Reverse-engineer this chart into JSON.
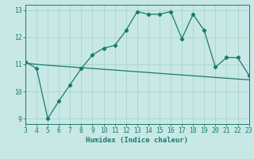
{
  "x": [
    3,
    4,
    5,
    6,
    7,
    8,
    9,
    10,
    11,
    12,
    13,
    14,
    15,
    16,
    17,
    18,
    19,
    20,
    21,
    22,
    23
  ],
  "y_line": [
    11.1,
    10.85,
    9.0,
    9.65,
    10.25,
    10.85,
    11.35,
    11.6,
    11.7,
    12.25,
    12.95,
    12.85,
    12.85,
    12.95,
    11.95,
    12.85,
    12.25,
    10.9,
    11.25,
    11.25,
    10.6
  ],
  "y_trend": [
    11.05,
    11.0,
    10.97,
    10.94,
    10.91,
    10.88,
    10.85,
    10.82,
    10.79,
    10.76,
    10.73,
    10.7,
    10.67,
    10.64,
    10.61,
    10.58,
    10.55,
    10.52,
    10.49,
    10.46,
    10.43
  ],
  "line_color": "#1a7a6e",
  "bg_color": "#c8e8e5",
  "grid_color": "#a8d4d0",
  "xlabel": "Humidex (Indice chaleur)",
  "xlim": [
    3,
    23
  ],
  "ylim": [
    8.8,
    13.2
  ],
  "yticks": [
    9,
    10,
    11,
    12,
    13
  ],
  "xticks": [
    3,
    4,
    5,
    6,
    7,
    8,
    9,
    10,
    11,
    12,
    13,
    14,
    15,
    16,
    17,
    18,
    19,
    20,
    21,
    22,
    23
  ]
}
